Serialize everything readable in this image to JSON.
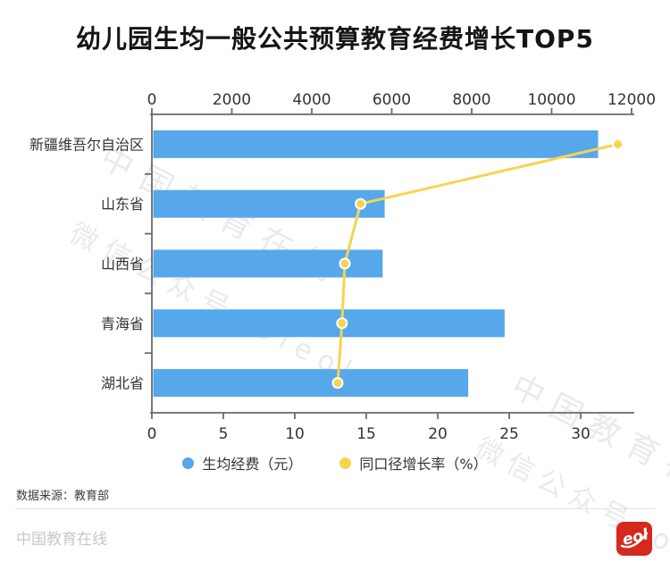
{
  "title": "幼儿园生均一般公共预算教育经费增长TOP5",
  "chart_data": {
    "type": "bar",
    "orientation": "horizontal",
    "categories": [
      "新疆维吾尔自治区",
      "山东省",
      "山西省",
      "青海省",
      "湖北省"
    ],
    "series": [
      {
        "name": "生均经费（元）",
        "type": "bar",
        "axis": "top",
        "values": [
          11130,
          5790,
          5740,
          8790,
          7880
        ]
      },
      {
        "name": "同口径增长率（%）",
        "type": "line",
        "axis": "bottom",
        "values": [
          32.6,
          14.6,
          13.5,
          13.3,
          13.0
        ]
      }
    ],
    "top_axis": {
      "min": 0,
      "max": 12000,
      "ticks": [
        0,
        2000,
        4000,
        6000,
        8000,
        10000,
        12000
      ]
    },
    "bottom_axis": {
      "min": 0,
      "max": 33.56,
      "ticks": [
        0,
        5,
        10,
        15,
        20,
        25,
        30
      ]
    },
    "grid": false,
    "legend_position": "bottom"
  },
  "legend": [
    {
      "label": "生均经费（元）",
      "color": "#57A7EB"
    },
    {
      "label": "同口径增长率（%）",
      "color": "#F6D44E"
    }
  ],
  "source_note": "数据来源：教育部",
  "footer": {
    "brand": "中国教育在线",
    "logo_text": "eol"
  },
  "watermarks": [
    "中国教育在线",
    "微信公众号eoleol",
    "中国教育在线",
    "微信公众号eol"
  ],
  "colors": {
    "bar": "#57A7EB",
    "line": "#F6D44E",
    "point_stroke": "#FFFFFF",
    "axis": "#6A6A6A",
    "tick_label": "#333333",
    "category_label": "#333333",
    "title": "#151515",
    "legend_text": "#333333",
    "divider": "#E4E4E4",
    "footer_text": "#C7C7C7",
    "source_text": "#3C3C3C",
    "logo_red": "#D5281E",
    "background": "#FFFFFF"
  }
}
